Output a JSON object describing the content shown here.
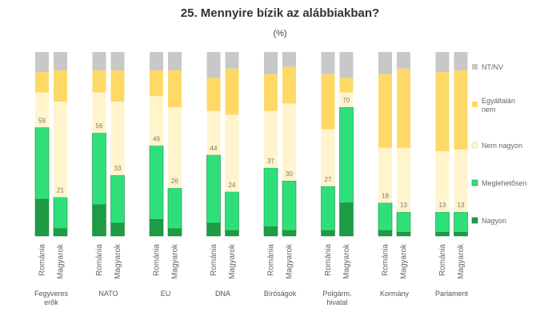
{
  "chart_data": {
    "type": "bar",
    "stacked": true,
    "title": "25. Mennyire bízik az alábbiakban?",
    "subtitle": "(%)",
    "groups": [
      {
        "name": "Fegyveres erők",
        "bars": [
          {
            "country": "Románia",
            "label": "59",
            "values": [
              20,
              39,
              19,
              11,
              11
            ]
          },
          {
            "country": "Magyarok",
            "label": "21",
            "values": [
              4,
              17,
              52,
              17,
              10
            ]
          }
        ]
      },
      {
        "name": "NATO",
        "bars": [
          {
            "country": "Románia",
            "label": "56",
            "values": [
              17,
              39,
              22,
              12,
              10
            ]
          },
          {
            "country": "Magyarok",
            "label": "33",
            "values": [
              7,
              26,
              40,
              17,
              10
            ]
          }
        ]
      },
      {
        "name": "EU",
        "bars": [
          {
            "country": "Románia",
            "label": "49",
            "values": [
              9,
              40,
              27,
              14,
              10
            ]
          },
          {
            "country": "Magyarok",
            "label": "26",
            "values": [
              4,
              22,
              44,
              20,
              10
            ]
          }
        ]
      },
      {
        "name": "DNA",
        "bars": [
          {
            "country": "Románia",
            "label": "44",
            "values": [
              7,
              37,
              24,
              18,
              14
            ]
          },
          {
            "country": "Magyarok",
            "label": "24",
            "values": [
              3,
              21,
              42,
              25,
              9
            ]
          }
        ]
      },
      {
        "name": "Bíróságok",
        "bars": [
          {
            "country": "Románia",
            "label": "37",
            "values": [
              5,
              32,
              31,
              20,
              12
            ]
          },
          {
            "country": "Magyarok",
            "label": "30",
            "values": [
              3,
              27,
              42,
              20,
              8
            ]
          }
        ]
      },
      {
        "name": "Polgárm. hivatal",
        "bars": [
          {
            "country": "Románia",
            "label": "27",
            "values": [
              3,
              24,
              31,
              30,
              12
            ]
          },
          {
            "country": "Magyarok",
            "label": "70",
            "values": [
              18,
              52,
              8,
              8,
              14
            ]
          }
        ]
      },
      {
        "name": "Kormány",
        "bars": [
          {
            "country": "Románia",
            "label": "18",
            "values": [
              3,
              15,
              30,
              40,
              12
            ]
          },
          {
            "country": "Magyarok",
            "label": "13",
            "values": [
              2,
              11,
              35,
              43,
              9
            ]
          }
        ]
      },
      {
        "name": "Parlament",
        "bars": [
          {
            "country": "Románia",
            "label": "13",
            "values": [
              2,
              11,
              33,
              43,
              11
            ]
          },
          {
            "country": "Magyarok",
            "label": "13",
            "values": [
              2,
              11,
              34,
              43,
              10
            ]
          }
        ]
      }
    ],
    "series": [
      {
        "name": "Nagyon",
        "color": "#1f9a45"
      },
      {
        "name": "Meglehetősen",
        "color": "#2fe07a"
      },
      {
        "name": "Nem nagyon",
        "color": "#fff4cc"
      },
      {
        "name": "Egyáltalán nem",
        "color": "#ffd966"
      },
      {
        "name": "NT/NV",
        "color": "#c8c8c8"
      }
    ],
    "legend_order": [
      "NT/NV",
      "Egyáltalán nem",
      "Nem nagyon",
      "Meglehetősen",
      "Nagyon"
    ],
    "legend_position": "right",
    "ylim": [
      0,
      100
    ]
  }
}
